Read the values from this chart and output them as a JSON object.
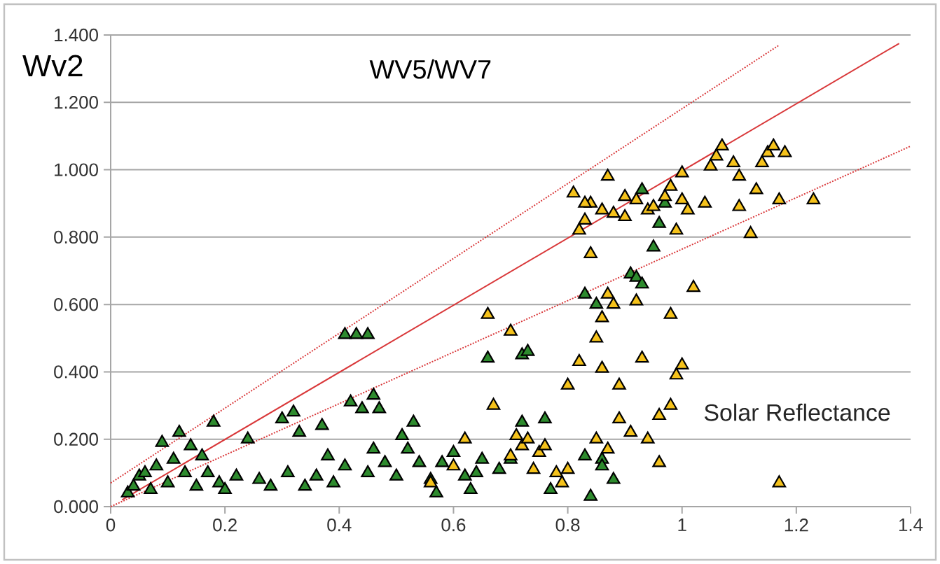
{
  "chart_data": {
    "type": "scatter",
    "title": "WV5/WV7",
    "ylabel": "Wv2",
    "annotations": [
      "Solar Reflectance"
    ],
    "xlim": [
      0,
      1.4
    ],
    "ylim": [
      0,
      1.4
    ],
    "xticks": [
      0,
      0.2,
      0.4,
      0.6,
      0.8,
      1,
      1.2,
      1.4
    ],
    "yticks": [
      {
        "value": 0,
        "label": "0.000"
      },
      {
        "value": 0.2,
        "label": "0.200"
      },
      {
        "value": 0.4,
        "label": "0.400"
      },
      {
        "value": 0.6,
        "label": "0.600"
      },
      {
        "value": 0.8,
        "label": "0.800"
      },
      {
        "value": 1.0,
        "label": "1.000"
      },
      {
        "value": 1.2,
        "label": "1.200"
      },
      {
        "value": 1.4,
        "label": "1.400"
      }
    ],
    "grid": "y",
    "marker": "triangle",
    "series": [
      {
        "type": "line",
        "color": "#d9383a",
        "line_style": "dotted",
        "marker": "none",
        "x": [
          0,
          1.17
        ],
        "values": [
          0.07,
          1.37
        ]
      },
      {
        "type": "line",
        "color": "#d9383a",
        "line_style": "solid",
        "marker": "none",
        "x": [
          0.02,
          1.38
        ],
        "values": [
          0.02,
          1.375
        ]
      },
      {
        "type": "line",
        "color": "#d9383a",
        "line_style": "dotted",
        "marker": "none",
        "x": [
          0,
          1.4
        ],
        "values": [
          0.0,
          1.07
        ]
      },
      {
        "color": "#2e8b2e",
        "x": [
          0.03,
          0.04,
          0.05,
          0.06,
          0.07,
          0.08,
          0.09,
          0.1,
          0.11,
          0.12,
          0.13,
          0.14,
          0.15,
          0.16,
          0.17,
          0.18,
          0.19,
          0.2,
          0.22,
          0.24,
          0.26,
          0.28,
          0.3,
          0.31,
          0.32,
          0.33,
          0.34,
          0.36,
          0.37,
          0.38,
          0.39,
          0.41,
          0.41,
          0.43,
          0.45,
          0.42,
          0.44,
          0.46,
          0.47,
          0.45,
          0.46,
          0.48,
          0.5,
          0.51,
          0.52,
          0.53,
          0.54,
          0.56,
          0.57,
          0.58,
          0.6,
          0.62,
          0.63,
          0.64,
          0.65,
          0.66,
          0.68,
          0.7,
          0.72,
          0.73,
          0.72,
          0.76,
          0.77,
          0.83,
          0.84,
          0.86,
          0.85,
          0.91,
          0.92,
          0.93,
          0.95,
          0.96,
          0.93,
          0.97,
          0.83,
          0.88,
          0.86
        ],
        "values": [
          0.04,
          0.06,
          0.09,
          0.1,
          0.05,
          0.12,
          0.19,
          0.07,
          0.14,
          0.22,
          0.1,
          0.18,
          0.06,
          0.15,
          0.1,
          0.25,
          0.07,
          0.05,
          0.09,
          0.2,
          0.08,
          0.06,
          0.26,
          0.1,
          0.28,
          0.22,
          0.06,
          0.09,
          0.24,
          0.15,
          0.07,
          0.12,
          0.51,
          0.51,
          0.51,
          0.31,
          0.29,
          0.33,
          0.29,
          0.1,
          0.17,
          0.13,
          0.09,
          0.21,
          0.17,
          0.25,
          0.13,
          0.08,
          0.04,
          0.13,
          0.16,
          0.09,
          0.05,
          0.1,
          0.14,
          0.44,
          0.11,
          0.14,
          0.45,
          0.46,
          0.25,
          0.26,
          0.05,
          0.15,
          0.03,
          0.14,
          0.6,
          0.69,
          0.68,
          0.66,
          0.77,
          0.84,
          0.94,
          0.9,
          0.63,
          0.08,
          0.12
        ]
      },
      {
        "color": "#f5c21b",
        "x": [
          0.56,
          0.6,
          0.62,
          0.66,
          0.67,
          0.7,
          0.7,
          0.71,
          0.72,
          0.73,
          0.74,
          0.75,
          0.76,
          0.78,
          0.79,
          0.8,
          0.8,
          0.81,
          0.82,
          0.82,
          0.83,
          0.84,
          0.84,
          0.85,
          0.85,
          0.86,
          0.86,
          0.87,
          0.87,
          0.87,
          0.88,
          0.88,
          0.89,
          0.9,
          0.91,
          0.92,
          0.93,
          0.94,
          0.94,
          0.95,
          0.96,
          0.96,
          0.97,
          0.98,
          0.98,
          0.99,
          0.99,
          1.0,
          1.0,
          1.01,
          1.02,
          1.04,
          1.05,
          1.06,
          1.07,
          1.1,
          1.1,
          1.12,
          1.13,
          1.14,
          1.15,
          1.16,
          1.17,
          1.18,
          1.23,
          1.17,
          1.09,
          0.89,
          0.92,
          0.98,
          0.83,
          0.9,
          1.0,
          0.86
        ],
        "values": [
          0.07,
          0.12,
          0.2,
          0.57,
          0.3,
          0.52,
          0.15,
          0.21,
          0.18,
          0.2,
          0.11,
          0.16,
          0.18,
          0.1,
          0.07,
          0.11,
          0.36,
          0.93,
          0.43,
          0.82,
          0.85,
          0.75,
          0.9,
          0.2,
          0.5,
          0.41,
          0.56,
          0.63,
          0.17,
          0.98,
          0.6,
          0.87,
          0.26,
          0.86,
          0.22,
          0.91,
          0.44,
          0.2,
          0.88,
          0.89,
          0.27,
          0.13,
          0.92,
          0.3,
          0.95,
          0.39,
          0.82,
          0.42,
          0.99,
          0.88,
          0.65,
          0.9,
          1.01,
          1.04,
          1.07,
          0.89,
          0.98,
          0.81,
          0.94,
          1.02,
          1.05,
          1.07,
          0.91,
          1.05,
          0.91,
          0.07,
          1.02,
          0.36,
          0.61,
          0.57,
          0.9,
          0.92,
          0.91,
          0.88
        ]
      }
    ]
  }
}
